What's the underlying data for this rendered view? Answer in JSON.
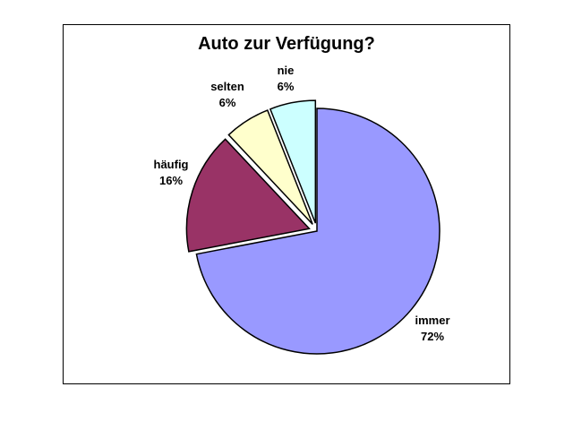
{
  "chart_data": {
    "type": "pie",
    "title": "Auto zur Verfügung?",
    "slices": [
      {
        "label": "immer",
        "value": 72,
        "value_label": "72%",
        "color": "#9999FF",
        "exploded": false
      },
      {
        "label": "häufig",
        "value": 16,
        "value_label": "16%",
        "color": "#993366",
        "exploded": true
      },
      {
        "label": "selten",
        "value": 6,
        "value_label": "6%",
        "color": "#FFFFCC",
        "exploded": true
      },
      {
        "label": "nie",
        "value": 6,
        "value_label": "6%",
        "color": "#CCFFFF",
        "exploded": true
      }
    ],
    "start_angle": "12 o'clock",
    "direction": "clockwise",
    "legend": "none"
  }
}
